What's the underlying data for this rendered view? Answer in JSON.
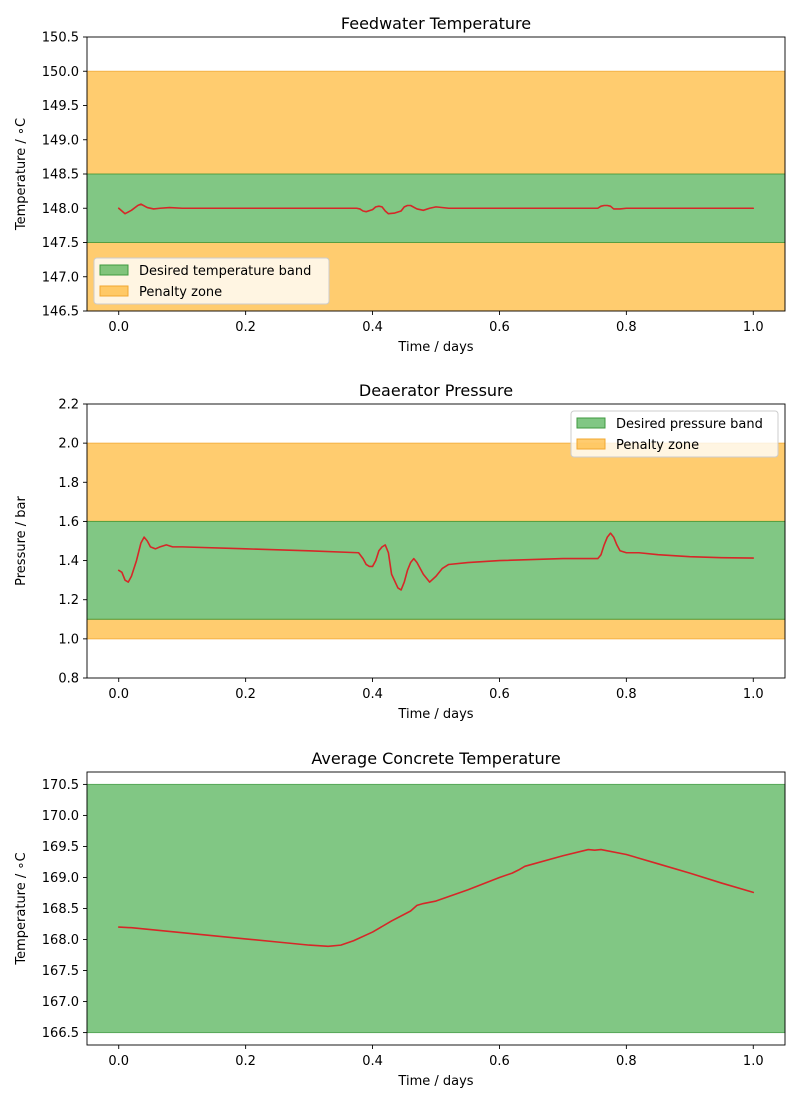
{
  "colors": {
    "desired": "#4caf50",
    "desired_edge": "#3f9a3f",
    "penalty": "#ffb732",
    "penalty_edge": "#f0a830",
    "line": "#d62728",
    "axis": "#000000"
  },
  "chart_data": [
    {
      "type": "line",
      "title": "Feedwater Temperature",
      "xlabel": "Time / days",
      "ylabel": "Temperature / ∘C",
      "xlim": [
        -0.05,
        1.05
      ],
      "ylim": [
        146.5,
        150.5
      ],
      "xticks": [
        "0.0",
        "0.2",
        "0.4",
        "0.6",
        "0.8",
        "1.0"
      ],
      "yticks": [
        "146.5",
        "147.0",
        "147.5",
        "148.0",
        "148.5",
        "149.0",
        "149.5",
        "150.0",
        "150.5"
      ],
      "grid": false,
      "legend_position": "lower-left",
      "bands": [
        {
          "kind": "penalty",
          "y0": 146.5,
          "y1": 147.5
        },
        {
          "kind": "penalty",
          "y0": 148.5,
          "y1": 150.0
        },
        {
          "kind": "desired",
          "y0": 147.5,
          "y1": 148.5
        }
      ],
      "legend": [
        {
          "kind": "desired",
          "label": "Desired temperature band"
        },
        {
          "kind": "penalty",
          "label": "Penalty zone"
        }
      ],
      "series": [
        {
          "x": [
            0.0,
            0.005,
            0.01,
            0.02,
            0.03,
            0.035,
            0.045,
            0.055,
            0.065,
            0.08,
            0.1,
            0.2,
            0.3,
            0.375,
            0.38,
            0.385,
            0.39,
            0.4,
            0.405,
            0.41,
            0.415,
            0.42,
            0.425,
            0.435,
            0.445,
            0.45,
            0.455,
            0.46,
            0.47,
            0.48,
            0.49,
            0.5,
            0.52,
            0.6,
            0.7,
            0.755,
            0.76,
            0.765,
            0.77,
            0.775,
            0.78,
            0.79,
            0.8,
            0.85,
            0.9,
            1.0
          ],
          "y": [
            148.0,
            147.96,
            147.92,
            147.97,
            148.04,
            148.06,
            148.01,
            147.99,
            148.0,
            148.01,
            148.0,
            148.0,
            148.0,
            148.0,
            147.99,
            147.96,
            147.95,
            147.98,
            148.02,
            148.03,
            148.02,
            147.96,
            147.92,
            147.93,
            147.96,
            148.02,
            148.04,
            148.04,
            147.99,
            147.97,
            148.0,
            148.02,
            148.0,
            148.0,
            148.0,
            148.0,
            148.03,
            148.04,
            148.04,
            148.03,
            147.99,
            147.99,
            148.0,
            148.0,
            148.0,
            148.0
          ]
        }
      ]
    },
    {
      "type": "line",
      "title": "Deaerator Pressure",
      "xlabel": "Time / days",
      "ylabel": "Pressure / bar",
      "xlim": [
        -0.05,
        1.05
      ],
      "ylim": [
        0.8,
        2.2
      ],
      "xticks": [
        "0.0",
        "0.2",
        "0.4",
        "0.6",
        "0.8",
        "1.0"
      ],
      "yticks": [
        "0.8",
        "1.0",
        "1.2",
        "1.4",
        "1.6",
        "1.8",
        "2.0",
        "2.2"
      ],
      "grid": false,
      "legend_position": "upper-right",
      "bands": [
        {
          "kind": "penalty",
          "y0": 1.0,
          "y1": 1.1
        },
        {
          "kind": "penalty",
          "y0": 1.6,
          "y1": 2.0
        },
        {
          "kind": "desired",
          "y0": 1.1,
          "y1": 1.6
        }
      ],
      "legend": [
        {
          "kind": "desired",
          "label": "Desired pressure band"
        },
        {
          "kind": "penalty",
          "label": "Penalty zone"
        }
      ],
      "series": [
        {
          "x": [
            0.0,
            0.005,
            0.01,
            0.015,
            0.02,
            0.028,
            0.035,
            0.04,
            0.045,
            0.05,
            0.058,
            0.065,
            0.075,
            0.085,
            0.1,
            0.2,
            0.3,
            0.378,
            0.385,
            0.39,
            0.395,
            0.4,
            0.405,
            0.41,
            0.415,
            0.42,
            0.425,
            0.43,
            0.44,
            0.445,
            0.45,
            0.455,
            0.46,
            0.465,
            0.47,
            0.48,
            0.49,
            0.5,
            0.51,
            0.52,
            0.55,
            0.6,
            0.7,
            0.755,
            0.76,
            0.765,
            0.77,
            0.775,
            0.78,
            0.785,
            0.79,
            0.8,
            0.82,
            0.85,
            0.9,
            0.95,
            1.0
          ],
          "y": [
            1.35,
            1.34,
            1.3,
            1.29,
            1.32,
            1.4,
            1.49,
            1.52,
            1.5,
            1.47,
            1.46,
            1.47,
            1.48,
            1.47,
            1.47,
            1.46,
            1.45,
            1.44,
            1.41,
            1.38,
            1.37,
            1.37,
            1.4,
            1.45,
            1.47,
            1.48,
            1.44,
            1.33,
            1.26,
            1.25,
            1.29,
            1.35,
            1.39,
            1.41,
            1.39,
            1.33,
            1.29,
            1.32,
            1.36,
            1.38,
            1.39,
            1.4,
            1.41,
            1.41,
            1.43,
            1.48,
            1.52,
            1.54,
            1.52,
            1.48,
            1.45,
            1.44,
            1.44,
            1.43,
            1.42,
            1.415,
            1.413
          ]
        }
      ]
    },
    {
      "type": "line",
      "title": "Average Concrete Temperature",
      "xlabel": "Time / days",
      "ylabel": "Temperature / ∘C",
      "xlim": [
        -0.05,
        1.05
      ],
      "ylim": [
        166.3,
        170.7
      ],
      "xticks": [
        "0.0",
        "0.2",
        "0.4",
        "0.6",
        "0.8",
        "1.0"
      ],
      "yticks": [
        "166.5",
        "167.0",
        "167.5",
        "168.0",
        "168.5",
        "169.0",
        "169.5",
        "170.0",
        "170.5"
      ],
      "grid": false,
      "legend_position": "none",
      "bands": [
        {
          "kind": "desired",
          "y0": 166.5,
          "y1": 170.5
        }
      ],
      "legend": [],
      "series": [
        {
          "x": [
            0.0,
            0.02,
            0.05,
            0.1,
            0.15,
            0.2,
            0.25,
            0.3,
            0.33,
            0.35,
            0.37,
            0.4,
            0.43,
            0.46,
            0.47,
            0.48,
            0.5,
            0.55,
            0.6,
            0.62,
            0.63,
            0.64,
            0.7,
            0.74,
            0.75,
            0.76,
            0.8,
            0.85,
            0.9,
            0.95,
            1.0
          ],
          "y": [
            168.2,
            168.19,
            168.16,
            168.11,
            168.06,
            168.01,
            167.96,
            167.91,
            167.89,
            167.91,
            167.98,
            168.12,
            168.3,
            168.46,
            168.55,
            168.58,
            168.62,
            168.8,
            169.0,
            169.07,
            169.12,
            169.18,
            169.35,
            169.45,
            169.44,
            169.45,
            169.37,
            169.22,
            169.07,
            168.91,
            168.76
          ]
        }
      ]
    }
  ]
}
